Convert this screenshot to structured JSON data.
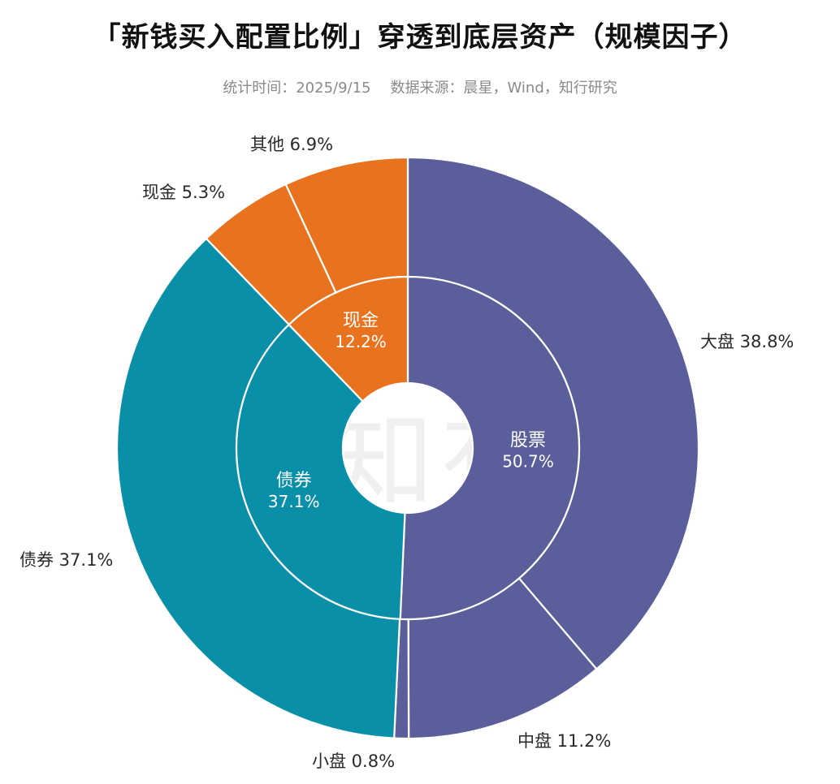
{
  "title": "「新钱买入配置比例」穿透到底层资产（规模因子）",
  "subtitle": {
    "stat_time": "统计时间：2025/9/15",
    "source": "数据来源：晨星，Wind，知行研究"
  },
  "watermark": "有知有行",
  "colors": {
    "stock": "#5a5e9a",
    "bond": "#0a8fa8",
    "cash": "#e8721e",
    "background": "#ffffff",
    "separator": "#ffffff"
  },
  "chart_data": {
    "type": "pie",
    "title": "「新钱买入配置比例」穿透到底层资产（规模因子）",
    "inner": [
      {
        "name": "股票",
        "value": 50.7,
        "label": "50.7%",
        "color": "#5a5e9a"
      },
      {
        "name": "债券",
        "value": 37.1,
        "label": "37.1%",
        "color": "#0a8fa8"
      },
      {
        "name": "现金",
        "value": 12.2,
        "label": "12.2%",
        "color": "#e8721e"
      }
    ],
    "outer": [
      {
        "name": "大盘",
        "value": 38.8,
        "label": "大盘 38.8%",
        "color": "#5a5e9a"
      },
      {
        "name": "中盘",
        "value": 11.2,
        "label": "中盘 11.2%",
        "color": "#5a5e9a"
      },
      {
        "name": "小盘",
        "value": 0.8,
        "label": "小盘 0.8%",
        "color": "#5a5e9a"
      },
      {
        "name": "债券",
        "value": 37.1,
        "label": "债券 37.1%",
        "color": "#0a8fa8"
      },
      {
        "name": "现金",
        "value": 5.3,
        "label": "现金 5.3%",
        "color": "#e8721e"
      },
      {
        "name": "其他",
        "value": 6.9,
        "label": "其他 6.9%",
        "color": "#e8721e"
      }
    ]
  }
}
